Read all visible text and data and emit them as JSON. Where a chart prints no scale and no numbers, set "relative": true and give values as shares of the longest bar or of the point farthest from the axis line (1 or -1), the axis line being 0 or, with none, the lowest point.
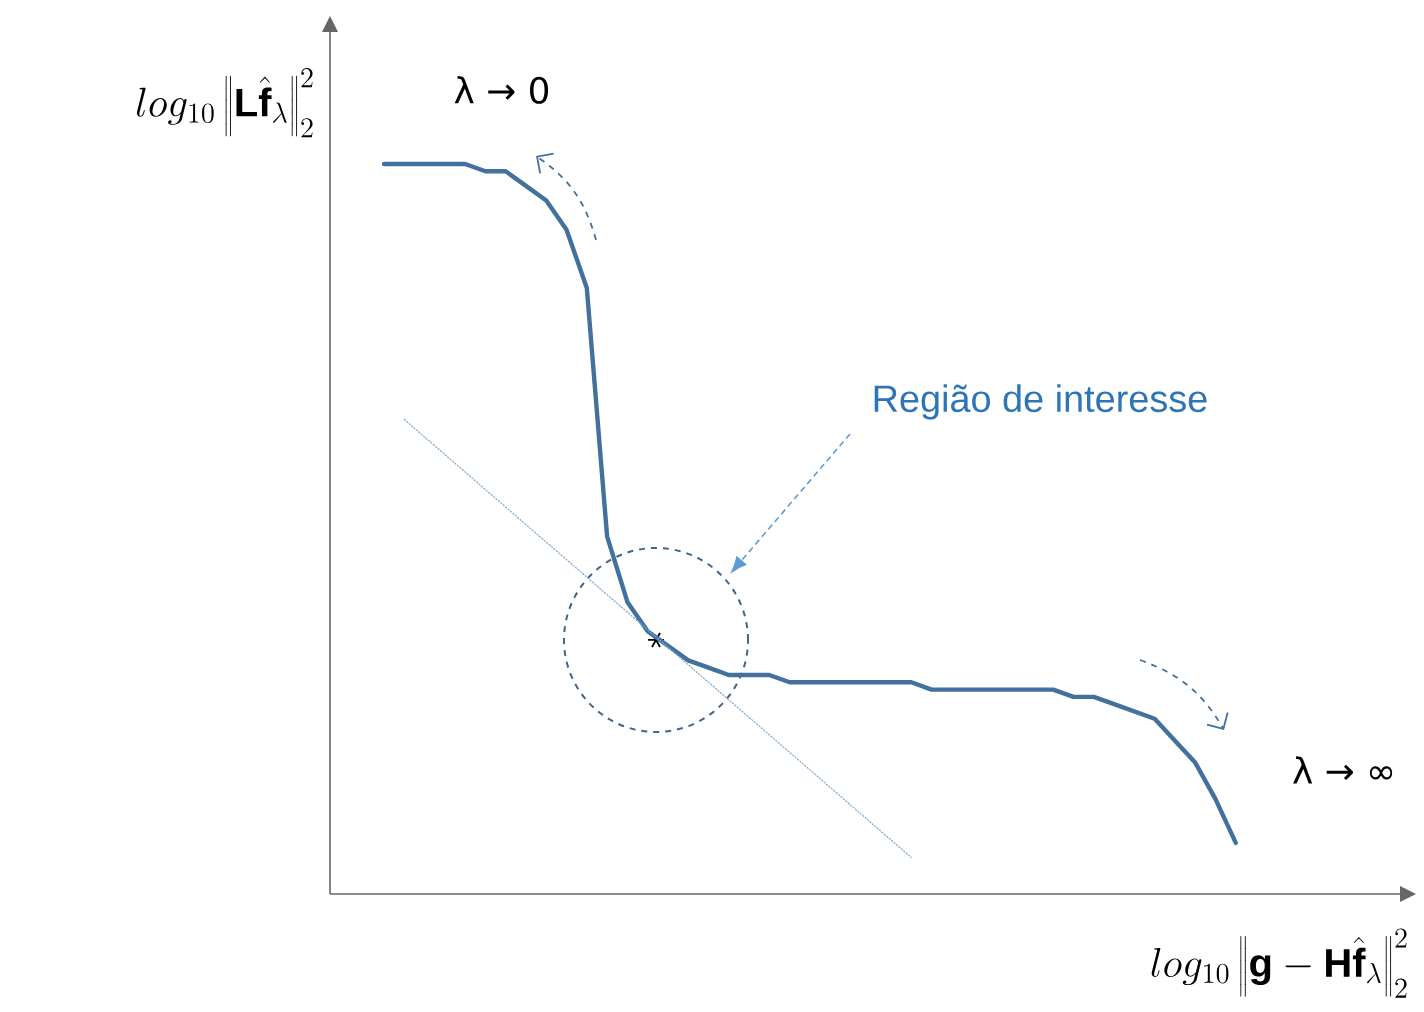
{
  "chart_data": {
    "type": "line",
    "relative": true,
    "xlabel": "log_{10}\\left\\|\\mathbf{g}-\\mathbf{H}\\hat{\\mathbf{f}}_{\\lambda}\\right\\|_2^2",
    "ylabel": "log_{10}\\left\\|\\mathbf{L}\\hat{\\mathbf{f}}_{\\lambda}\\right\\|_2^2",
    "annotations": [
      "λ → 0",
      "Região de interesse",
      "λ → ∞"
    ],
    "categories": [
      null,
      null,
      null,
      null,
      null,
      null,
      null,
      null,
      null,
      null,
      null,
      null,
      null,
      null,
      null,
      null,
      null,
      null,
      null,
      null,
      null,
      null,
      null,
      null,
      null,
      null,
      null,
      null,
      null,
      null,
      null,
      null,
      null,
      null,
      null,
      null,
      null,
      null,
      null,
      null,
      null,
      null,
      null
    ],
    "series": [
      {
        "color": "#41719c",
        "values": [
          1.0,
          1.0,
          1.0,
          1.0,
          1.0,
          0.99,
          0.99,
          0.97,
          0.95,
          0.91,
          0.83,
          0.49,
          0.4,
          0.36,
          0.34,
          0.32,
          0.31,
          0.3,
          0.3,
          0.3,
          0.29,
          0.29,
          0.29,
          0.29,
          0.29,
          0.29,
          0.29,
          0.28,
          0.28,
          0.28,
          0.28,
          0.28,
          0.28,
          0.28,
          0.27,
          0.27,
          0.26,
          0.25,
          0.24,
          0.21,
          0.18,
          0.13,
          0.07
        ]
      },
      {
        "color": "#7fa7d0",
        "line_style": "dotted",
        "values": [
          null,
          0.65,
          null,
          null,
          null,
          null,
          null,
          null,
          null,
          null,
          null,
          null,
          null,
          null,
          null,
          null,
          null,
          null,
          null,
          null,
          null,
          null,
          null,
          null,
          null,
          null,
          0.05,
          null,
          null,
          null,
          null,
          null,
          null,
          null,
          null,
          null,
          null,
          null,
          null,
          null,
          null,
          null,
          null
        ]
      }
    ]
  }
}
